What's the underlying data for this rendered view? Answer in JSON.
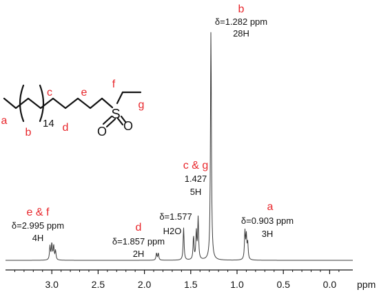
{
  "chart_data": {
    "type": "line",
    "title": "",
    "xlabel": "ppm",
    "xlim": [
      3.5,
      -0.25
    ],
    "x_reversed": true,
    "x_ticks": [
      "3.0",
      "2.5",
      "2.0",
      "1.5",
      "1.0",
      "0.5",
      "0.0"
    ],
    "x_tick_values": [
      3.0,
      2.5,
      2.0,
      1.5,
      1.0,
      0.5,
      0.0
    ],
    "peaks": [
      {
        "ppm": 3.02,
        "height": 0.06
      },
      {
        "ppm": 3.0,
        "height": 0.07
      },
      {
        "ppm": 2.98,
        "height": 0.06
      },
      {
        "ppm": 2.96,
        "height": 0.04
      },
      {
        "ppm": 1.87,
        "height": 0.03
      },
      {
        "ppm": 1.85,
        "height": 0.03
      },
      {
        "ppm": 1.577,
        "height": 0.14
      },
      {
        "ppm": 1.47,
        "height": 0.1
      },
      {
        "ppm": 1.44,
        "height": 0.12
      },
      {
        "ppm": 1.42,
        "height": 0.18
      },
      {
        "ppm": 1.282,
        "height": 1.0
      },
      {
        "ppm": 0.915,
        "height": 0.12
      },
      {
        "ppm": 0.9,
        "height": 0.1
      },
      {
        "ppm": 0.885,
        "height": 0.07
      }
    ],
    "annotations": [
      {
        "letter": "b",
        "lines": [
          "δ=1.282 ppm",
          "28H"
        ]
      },
      {
        "letter": "c & g",
        "lines": [
          "1.427",
          "5H"
        ]
      },
      {
        "letter": "",
        "lines": [
          "δ=1.577",
          "H2O"
        ]
      },
      {
        "letter": "a",
        "lines": [
          "δ=0.903 ppm",
          "3H"
        ]
      },
      {
        "letter": "d",
        "lines": [
          "δ=1.857 ppm",
          "2H"
        ]
      },
      {
        "letter": "e & f",
        "lines": [
          "δ=2.995 ppm",
          "4H"
        ]
      }
    ]
  },
  "structure": {
    "labels": {
      "a": "a",
      "b": "b",
      "c": "c",
      "d": "d",
      "e": "e",
      "f": "f",
      "g": "g"
    },
    "repeat_count": "14",
    "sulfur": "S",
    "oxygen1": "O",
    "oxygen2": "O"
  }
}
